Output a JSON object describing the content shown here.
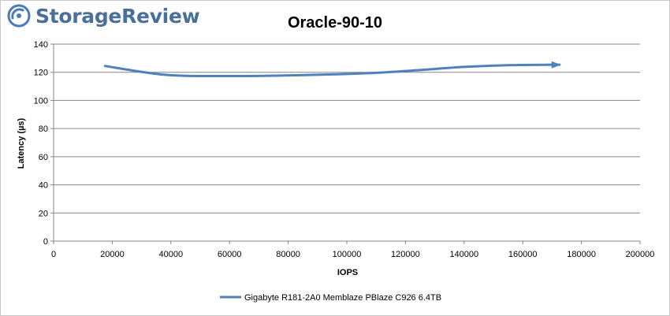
{
  "brand": {
    "name": "StorageReview",
    "icon": "storagereview-logo-icon",
    "icon_color": "#4a7bb7",
    "text_color": "#4a6f9a"
  },
  "chart_data": {
    "type": "line",
    "title": "Oracle-90-10",
    "xlabel": "IOPS",
    "ylabel": "Latency (µs)",
    "xlim": [
      0,
      200000
    ],
    "ylim": [
      0,
      140
    ],
    "xticks": [
      0,
      20000,
      40000,
      60000,
      80000,
      100000,
      120000,
      140000,
      160000,
      180000,
      200000
    ],
    "yticks": [
      0,
      20,
      40,
      60,
      80,
      100,
      120,
      140
    ],
    "grid": "horizontal",
    "legend_position": "bottom",
    "series": [
      {
        "name": "Gigabyte R181-2A0 Memblaze PBlaze C926 6.4TB",
        "color": "#4f81bd",
        "x": [
          17500,
          38000,
          57000,
          76000,
          95000,
          110000,
          125000,
          140000,
          155000,
          172500
        ],
        "y": [
          124.5,
          118.2,
          117.3,
          117.6,
          118.5,
          119.6,
          121.6,
          123.8,
          125.0,
          125.4
        ]
      }
    ]
  }
}
